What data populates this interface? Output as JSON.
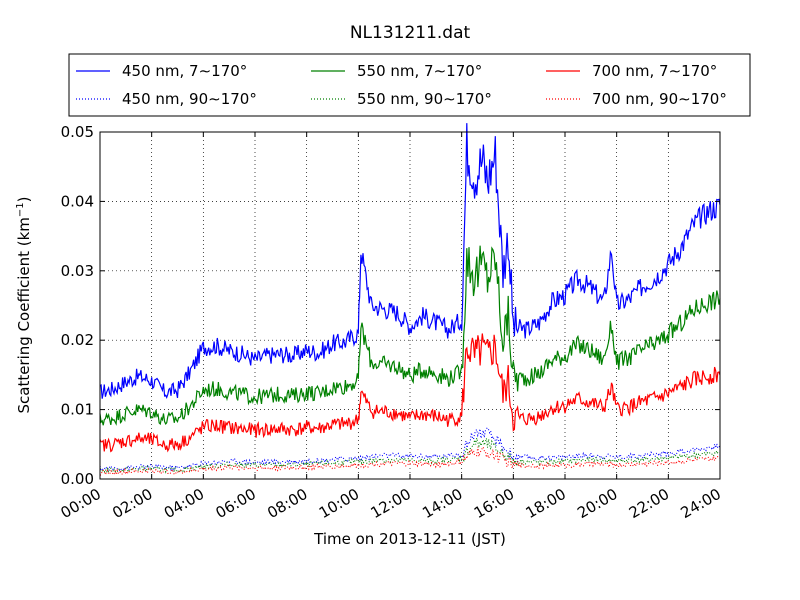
{
  "chart_data": {
    "type": "line",
    "title": "NL131211.dat",
    "xlabel": "Time on 2013-12-11 (JST)",
    "ylabel": "Scattering Coefficient (km",
    "ylabel_sup": "−1",
    "ylabel_end": ")",
    "xlim_hours": [
      0,
      24
    ],
    "ylim": [
      0,
      0.05
    ],
    "grid": true,
    "legend_position": "top",
    "x_ticks": [
      {
        "hour": 0,
        "label": "00:00"
      },
      {
        "hour": 2,
        "label": "02:00"
      },
      {
        "hour": 4,
        "label": "04:00"
      },
      {
        "hour": 6,
        "label": "06:00"
      },
      {
        "hour": 8,
        "label": "08:00"
      },
      {
        "hour": 10,
        "label": "10:00"
      },
      {
        "hour": 12,
        "label": "12:00"
      },
      {
        "hour": 14,
        "label": "14:00"
      },
      {
        "hour": 16,
        "label": "16:00"
      },
      {
        "hour": 18,
        "label": "18:00"
      },
      {
        "hour": 20,
        "label": "20:00"
      },
      {
        "hour": 22,
        "label": "22:00"
      },
      {
        "hour": 24,
        "label": "24:00"
      }
    ],
    "y_ticks": [
      {
        "value": 0,
        "label": "0.00"
      },
      {
        "value": 0.01,
        "label": "0.01"
      },
      {
        "value": 0.02,
        "label": "0.02"
      },
      {
        "value": 0.03,
        "label": "0.03"
      },
      {
        "value": 0.04,
        "label": "0.04"
      },
      {
        "value": 0.05,
        "label": "0.05"
      }
    ],
    "series": [
      {
        "name": "450 nm, 7∼170°",
        "color": "#0000ff",
        "style": "solid",
        "x": [
          0,
          0.5,
          1,
          1.5,
          2,
          2.5,
          3,
          3.5,
          4,
          4.5,
          5,
          5.5,
          6,
          6.5,
          7,
          7.5,
          8,
          8.5,
          9,
          9.5,
          10,
          10.1,
          10.5,
          11,
          11.5,
          12,
          12.5,
          13,
          13.5,
          14,
          14.2,
          14.5,
          14.8,
          15,
          15.3,
          15.6,
          15.8,
          16,
          16.5,
          17,
          17.5,
          18,
          18.5,
          19,
          19.5,
          19.8,
          20,
          20.5,
          21,
          21.5,
          22,
          22.5,
          23,
          23.5,
          24
        ],
        "y": [
          0.0125,
          0.013,
          0.014,
          0.0148,
          0.0142,
          0.0125,
          0.0128,
          0.0155,
          0.019,
          0.0192,
          0.0185,
          0.018,
          0.0172,
          0.0178,
          0.018,
          0.0178,
          0.0185,
          0.0182,
          0.0195,
          0.0198,
          0.021,
          0.033,
          0.025,
          0.0245,
          0.024,
          0.022,
          0.0235,
          0.0225,
          0.0215,
          0.023,
          0.048,
          0.044,
          0.046,
          0.043,
          0.047,
          0.03,
          0.035,
          0.022,
          0.0215,
          0.0225,
          0.0255,
          0.0265,
          0.0288,
          0.0275,
          0.0255,
          0.033,
          0.025,
          0.026,
          0.0278,
          0.029,
          0.031,
          0.0335,
          0.0368,
          0.0385,
          0.0395
        ]
      },
      {
        "name": "550 nm, 7∼170°",
        "color": "#008000",
        "style": "solid",
        "x": [
          0,
          0.5,
          1,
          1.5,
          2,
          2.5,
          3,
          3.5,
          4,
          4.5,
          5,
          5.5,
          6,
          6.5,
          7,
          7.5,
          8,
          8.5,
          9,
          9.5,
          10,
          10.1,
          10.5,
          11,
          11.5,
          12,
          12.5,
          13,
          13.5,
          14,
          14.2,
          14.5,
          14.8,
          15,
          15.3,
          15.6,
          15.8,
          16,
          16.5,
          17,
          17.5,
          18,
          18.5,
          19,
          19.5,
          19.8,
          20,
          20.5,
          21,
          21.5,
          22,
          22.5,
          23,
          23.5,
          24
        ],
        "y": [
          0.0085,
          0.0088,
          0.0095,
          0.01,
          0.0097,
          0.0085,
          0.0087,
          0.0105,
          0.0128,
          0.013,
          0.0125,
          0.0122,
          0.0118,
          0.012,
          0.0122,
          0.012,
          0.0125,
          0.0123,
          0.0132,
          0.0134,
          0.0142,
          0.022,
          0.0168,
          0.0165,
          0.0162,
          0.0148,
          0.0158,
          0.0152,
          0.0145,
          0.0155,
          0.032,
          0.029,
          0.031,
          0.029,
          0.032,
          0.02,
          0.0235,
          0.0148,
          0.0145,
          0.0152,
          0.0172,
          0.0178,
          0.0193,
          0.0185,
          0.0172,
          0.0222,
          0.0168,
          0.0175,
          0.0187,
          0.0195,
          0.0208,
          0.0225,
          0.0245,
          0.0255,
          0.026
        ]
      },
      {
        "name": "700 nm, 7∼170°",
        "color": "#ff0000",
        "style": "solid",
        "x": [
          0,
          0.5,
          1,
          1.5,
          2,
          2.5,
          3,
          3.5,
          4,
          4.5,
          5,
          5.5,
          6,
          6.5,
          7,
          7.5,
          8,
          8.5,
          9,
          9.5,
          10,
          10.1,
          10.5,
          11,
          11.5,
          12,
          12.5,
          13,
          13.5,
          14,
          14.2,
          14.5,
          14.8,
          15,
          15.3,
          15.6,
          15.8,
          16,
          16.5,
          17,
          17.5,
          18,
          18.5,
          19,
          19.5,
          19.8,
          20,
          20.5,
          21,
          21.5,
          22,
          22.5,
          23,
          23.5,
          24
        ],
        "y": [
          0.0048,
          0.005,
          0.0055,
          0.0058,
          0.0056,
          0.0049,
          0.005,
          0.006,
          0.0075,
          0.0077,
          0.0074,
          0.0072,
          0.007,
          0.0071,
          0.0072,
          0.0071,
          0.0074,
          0.0073,
          0.0078,
          0.0079,
          0.0085,
          0.0125,
          0.0098,
          0.0097,
          0.0095,
          0.0087,
          0.0093,
          0.009,
          0.0085,
          0.009,
          0.019,
          0.0175,
          0.0185,
          0.0175,
          0.019,
          0.012,
          0.014,
          0.0088,
          0.0086,
          0.009,
          0.0102,
          0.0106,
          0.0115,
          0.011,
          0.0102,
          0.0132,
          0.01,
          0.0104,
          0.0111,
          0.0116,
          0.0123,
          0.0133,
          0.0143,
          0.0148,
          0.015
        ]
      },
      {
        "name": "450 nm, 90∼170°",
        "color": "#0000ff",
        "style": "dotted",
        "x": [
          0,
          1,
          2,
          3,
          4,
          5,
          6,
          7,
          8,
          9,
          10,
          11,
          12,
          13,
          14,
          14.5,
          15,
          15.5,
          16,
          17,
          18,
          19,
          20,
          21,
          22,
          23,
          24
        ],
        "y": [
          0.0015,
          0.0016,
          0.0018,
          0.0016,
          0.0022,
          0.0026,
          0.0024,
          0.0025,
          0.0026,
          0.0028,
          0.003,
          0.0034,
          0.0033,
          0.0032,
          0.0036,
          0.0068,
          0.0065,
          0.005,
          0.0032,
          0.003,
          0.0032,
          0.0034,
          0.0032,
          0.0034,
          0.0037,
          0.0042,
          0.0048
        ]
      },
      {
        "name": "550 nm, 90∼170°",
        "color": "#008000",
        "style": "dotted",
        "x": [
          0,
          1,
          2,
          3,
          4,
          5,
          6,
          7,
          8,
          9,
          10,
          11,
          12,
          13,
          14,
          14.5,
          15,
          15.5,
          16,
          17,
          18,
          19,
          20,
          21,
          22,
          23,
          24
        ],
        "y": [
          0.0012,
          0.0013,
          0.0015,
          0.0013,
          0.0018,
          0.0021,
          0.002,
          0.002,
          0.0021,
          0.0023,
          0.0025,
          0.0028,
          0.0027,
          0.0026,
          0.003,
          0.0052,
          0.005,
          0.004,
          0.0026,
          0.0024,
          0.0026,
          0.0028,
          0.0026,
          0.0028,
          0.003,
          0.0034,
          0.0038
        ]
      },
      {
        "name": "700 nm, 90∼170°",
        "color": "#ff0000",
        "style": "dotted",
        "x": [
          0,
          1,
          2,
          3,
          4,
          5,
          6,
          7,
          8,
          9,
          10,
          11,
          12,
          13,
          14,
          14.5,
          15,
          15.5,
          16,
          17,
          18,
          19,
          20,
          21,
          22,
          23,
          24
        ],
        "y": [
          0.0009,
          0.001,
          0.0012,
          0.001,
          0.0014,
          0.0017,
          0.0016,
          0.0016,
          0.0017,
          0.0018,
          0.002,
          0.0022,
          0.0022,
          0.0021,
          0.0024,
          0.004,
          0.0038,
          0.0031,
          0.002,
          0.0019,
          0.002,
          0.0022,
          0.002,
          0.0022,
          0.0024,
          0.0027,
          0.003
        ]
      }
    ]
  }
}
